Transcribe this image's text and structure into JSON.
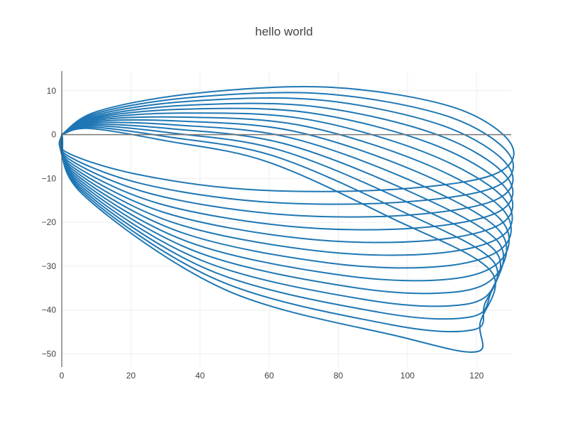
{
  "chart_data": {
    "type": "line",
    "title": "hello world",
    "xlabel": "",
    "ylabel": "",
    "xlim": [
      0,
      130
    ],
    "ylim": [
      -53,
      14.5
    ],
    "x_ticks": [
      0,
      20,
      40,
      60,
      80,
      100,
      120
    ],
    "y_ticks": [
      10,
      0,
      -10,
      -20,
      -30,
      -40,
      -50
    ],
    "x_tick_labels": [
      "0",
      "20",
      "40",
      "60",
      "80",
      "100",
      "120"
    ],
    "y_tick_labels": [
      "10",
      "0",
      "−10",
      "−20",
      "−30",
      "−40",
      "−50"
    ],
    "grid": true,
    "legend": false,
    "line_color": "#1f77b4",
    "series": [
      {
        "points": [
          [
            0,
            0
          ],
          [
            10.3,
            5.3
          ],
          [
            38.5,
            9.4
          ],
          [
            77.5,
            10.8
          ],
          [
            113,
            6.3
          ],
          [
            130,
            -2.2
          ],
          [
            124.3,
            -9.3
          ],
          [
            93.6,
            -12.6
          ],
          [
            53.7,
            -12.5
          ],
          [
            20.9,
            -8.9
          ],
          [
            1.1,
            -3.9
          ],
          [
            0,
            0
          ]
        ]
      },
      {
        "points": [
          [
            0,
            0
          ],
          [
            10.2,
            4.9
          ],
          [
            37.8,
            8.5
          ],
          [
            76,
            9.3
          ],
          [
            111.5,
            4.2
          ],
          [
            129.5,
            -4.6
          ],
          [
            125.2,
            -12
          ],
          [
            96.6,
            -15.5
          ],
          [
            57.8,
            -15.3
          ],
          [
            23.2,
            -11.2
          ],
          [
            1.5,
            -4.7
          ],
          [
            0,
            0
          ]
        ]
      },
      {
        "points": [
          [
            0,
            0
          ],
          [
            10,
            4.5
          ],
          [
            37,
            7.6
          ],
          [
            74.5,
            7.9
          ],
          [
            110,
            2.1
          ],
          [
            129,
            -7
          ],
          [
            126,
            -14.7
          ],
          [
            99.5,
            -18.4
          ],
          [
            61.8,
            -18.1
          ],
          [
            25.4,
            -13.4
          ],
          [
            1.9,
            -5.5
          ],
          [
            0,
            0
          ]
        ]
      },
      {
        "points": [
          [
            0,
            0
          ],
          [
            9.8,
            4.1
          ],
          [
            36.3,
            6.7
          ],
          [
            73,
            6.4
          ],
          [
            108.5,
            0
          ],
          [
            128.5,
            -9.4
          ],
          [
            126.8,
            -17.4
          ],
          [
            102.4,
            -21.3
          ],
          [
            65.8,
            -20.9
          ],
          [
            27.6,
            -15.6
          ],
          [
            2.3,
            -6.3
          ],
          [
            0,
            0
          ]
        ]
      },
      {
        "points": [
          [
            0,
            0
          ],
          [
            9.6,
            3.8
          ],
          [
            35.6,
            5.8
          ],
          [
            71.5,
            5
          ],
          [
            107,
            -2.1
          ],
          [
            128,
            -11.8
          ],
          [
            127.5,
            -20.1
          ],
          [
            105.3,
            -24.2
          ],
          [
            69.8,
            -23.7
          ],
          [
            29.8,
            -17.8
          ],
          [
            2.7,
            -7.1
          ],
          [
            0,
            0
          ]
        ]
      },
      {
        "points": [
          [
            0,
            0
          ],
          [
            9.4,
            3.5
          ],
          [
            34.9,
            4.9
          ],
          [
            70,
            3.6
          ],
          [
            105.5,
            -4.2
          ],
          [
            127.5,
            -14.2
          ],
          [
            127.9,
            -22.8
          ],
          [
            108,
            -27.1
          ],
          [
            73.8,
            -26.5
          ],
          [
            32,
            -20
          ],
          [
            3.1,
            -7.9
          ],
          [
            0,
            0
          ]
        ]
      },
      {
        "points": [
          [
            0,
            0
          ],
          [
            9.2,
            3.2
          ],
          [
            34.2,
            4
          ],
          [
            68.5,
            2.2
          ],
          [
            104,
            -6.3
          ],
          [
            127,
            -16.6
          ],
          [
            127.9,
            -25.5
          ],
          [
            110.5,
            -30
          ],
          [
            77.6,
            -29.3
          ],
          [
            34.2,
            -22.2
          ],
          [
            3.5,
            -8.7
          ],
          [
            0,
            0
          ]
        ]
      },
      {
        "points": [
          [
            0,
            0
          ],
          [
            9,
            2.9
          ],
          [
            33.5,
            3.1
          ],
          [
            67,
            0.8
          ],
          [
            102.5,
            -8.4
          ],
          [
            126.5,
            -19
          ],
          [
            127.5,
            -28.2
          ],
          [
            112.8,
            -32.9
          ],
          [
            81.3,
            -32.1
          ],
          [
            36.4,
            -24.4
          ],
          [
            3.9,
            -9.5
          ],
          [
            0,
            0
          ]
        ]
      },
      {
        "points": [
          [
            0,
            0
          ],
          [
            8.8,
            2.6
          ],
          [
            32.8,
            2.2
          ],
          [
            65.5,
            -0.6
          ],
          [
            101,
            -10.5
          ],
          [
            126,
            -21.4
          ],
          [
            126.7,
            -30.9
          ],
          [
            114.8,
            -35.8
          ],
          [
            84.9,
            -34.9
          ],
          [
            38.6,
            -26.6
          ],
          [
            4.3,
            -10.3
          ],
          [
            0,
            0
          ]
        ]
      },
      {
        "points": [
          [
            0,
            0
          ],
          [
            8.6,
            2.3
          ],
          [
            32.1,
            1.3
          ],
          [
            64,
            -2
          ],
          [
            99.5,
            -12.6
          ],
          [
            125.5,
            -23.8
          ],
          [
            125.5,
            -33.6
          ],
          [
            116.6,
            -38.7
          ],
          [
            88.4,
            -37.7
          ],
          [
            40.8,
            -28.8
          ],
          [
            4.7,
            -11.1
          ],
          [
            0,
            0
          ]
        ]
      },
      {
        "points": [
          [
            0,
            0
          ],
          [
            8.4,
            2
          ],
          [
            31.4,
            0.4
          ],
          [
            62.5,
            -3.4
          ],
          [
            98,
            -14.7
          ],
          [
            125,
            -26.2
          ],
          [
            124,
            -36.3
          ],
          [
            118,
            -41.6
          ],
          [
            91.8,
            -40.5
          ],
          [
            43,
            -31
          ],
          [
            5.1,
            -11.9
          ],
          [
            0,
            0
          ]
        ]
      },
      {
        "points": [
          [
            0,
            0
          ],
          [
            8.2,
            1.7
          ],
          [
            30.7,
            -0.5
          ],
          [
            61,
            -4.8
          ],
          [
            96.5,
            -16.8
          ],
          [
            124.5,
            -28.6
          ],
          [
            122.2,
            -39
          ],
          [
            119,
            -44.5
          ],
          [
            95,
            -43.3
          ],
          [
            45.2,
            -33.2
          ],
          [
            5.5,
            -12.7
          ],
          [
            0,
            0
          ]
        ]
      },
      {
        "points": [
          [
            0,
            0
          ],
          [
            8,
            1.4
          ],
          [
            30,
            -1.4
          ],
          [
            59.5,
            -6.2
          ],
          [
            95,
            -18.9
          ],
          [
            124,
            -31
          ],
          [
            121,
            -43
          ],
          [
            120,
            -49.5
          ],
          [
            98,
            -46.1
          ],
          [
            47.4,
            -35.4
          ],
          [
            5.9,
            -13.5
          ],
          [
            0,
            0
          ]
        ]
      }
    ]
  }
}
